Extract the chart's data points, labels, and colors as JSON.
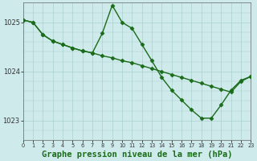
{
  "line1_smooth": {
    "x": [
      0,
      1,
      2,
      3,
      4,
      5,
      6,
      7,
      8,
      9,
      10,
      11,
      12,
      13,
      14,
      15,
      16,
      17,
      18,
      19,
      20,
      21,
      22,
      23
    ],
    "y": [
      1025.05,
      1025.0,
      1024.75,
      1024.62,
      1024.55,
      1024.48,
      1024.42,
      1024.38,
      1024.32,
      1024.28,
      1024.22,
      1024.18,
      1024.12,
      1024.06,
      1024.0,
      1023.94,
      1023.88,
      1023.82,
      1023.76,
      1023.7,
      1023.64,
      1023.58,
      1023.8,
      1023.9
    ]
  },
  "line2_volatile": {
    "x": [
      0,
      1,
      2,
      3,
      4,
      5,
      6,
      7,
      8,
      9,
      10,
      11,
      12,
      13,
      14,
      15,
      16,
      17,
      18,
      19,
      20,
      21,
      22,
      23
    ],
    "y": [
      1025.05,
      1025.0,
      1024.75,
      1024.62,
      1024.55,
      1024.48,
      1024.42,
      1024.38,
      1024.78,
      1025.35,
      1025.0,
      1024.88,
      1024.55,
      1024.22,
      1023.88,
      1023.62,
      1023.42,
      1023.22,
      1023.05,
      1023.05,
      1023.32,
      1023.62,
      1023.82,
      1023.9
    ]
  },
  "line_color": "#1a6b1a",
  "linewidth": 1.0,
  "marker": "D",
  "markersize": 2.5,
  "background_color": "#ceeaea",
  "grid_color": "#aacfcf",
  "axis_color": "#666666",
  "title": "Graphe pression niveau de la mer (hPa)",
  "title_fontsize": 7.5,
  "title_color": "#1a6b1a",
  "xlim": [
    0,
    23
  ],
  "ylim": [
    1022.6,
    1025.4
  ],
  "yticks": [
    1023,
    1024,
    1025
  ],
  "xticks": [
    0,
    1,
    2,
    3,
    4,
    5,
    6,
    7,
    8,
    9,
    10,
    11,
    12,
    13,
    14,
    15,
    16,
    17,
    18,
    19,
    20,
    21,
    22,
    23
  ]
}
